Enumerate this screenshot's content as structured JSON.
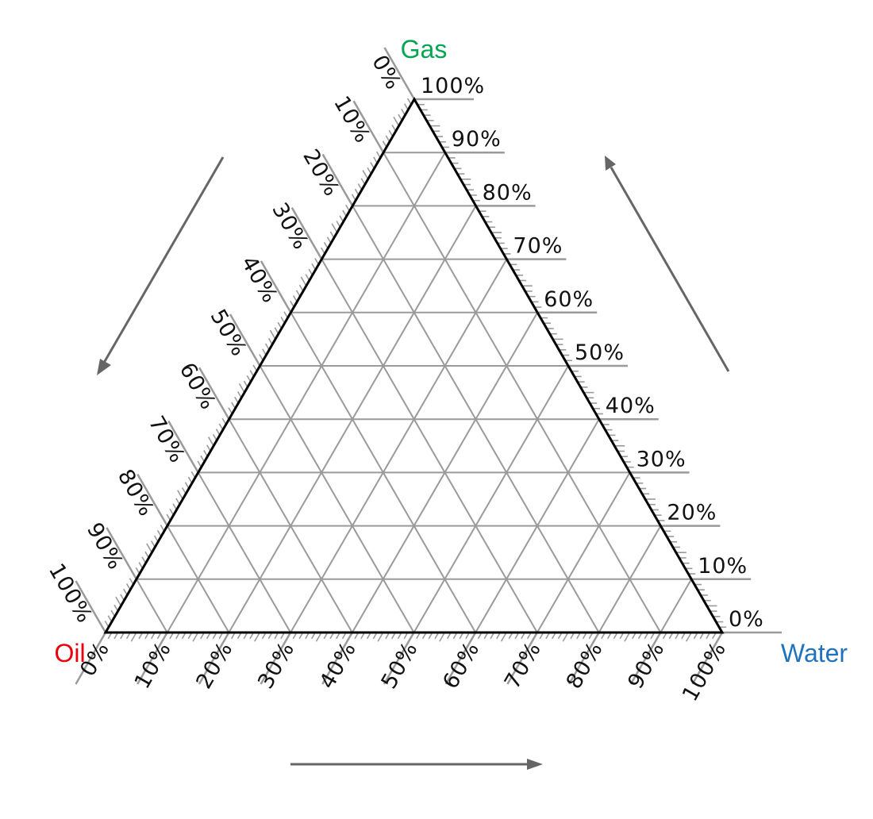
{
  "corners": {
    "top": {
      "label": "Gas",
      "color": "#00a651"
    },
    "left": {
      "label": "Oil",
      "color": "#e8000b"
    },
    "right": {
      "label": "Water",
      "color": "#1f72bd"
    }
  },
  "scales": {
    "gas_right_side": [
      "0%",
      "10%",
      "20%",
      "30%",
      "40%",
      "50%",
      "60%",
      "70%",
      "80%",
      "90%",
      "100%"
    ],
    "oil_left_side": [
      "0%",
      "10%",
      "20%",
      "30%",
      "40%",
      "50%",
      "60%",
      "70%",
      "80%",
      "90%",
      "100%"
    ],
    "water_bottom_side": [
      "0%",
      "10%",
      "20%",
      "30%",
      "40%",
      "50%",
      "60%",
      "70%",
      "80%",
      "90%",
      "100%"
    ]
  },
  "arrows": {
    "left": "direction-down-left",
    "right": "direction-up-right",
    "bottom": "direction-right"
  },
  "colors": {
    "frame": "#000000",
    "grid": "#9a9a9a",
    "arrow": "#666666"
  },
  "grid_step_percent": 10,
  "minor_tick_percent": 1
}
